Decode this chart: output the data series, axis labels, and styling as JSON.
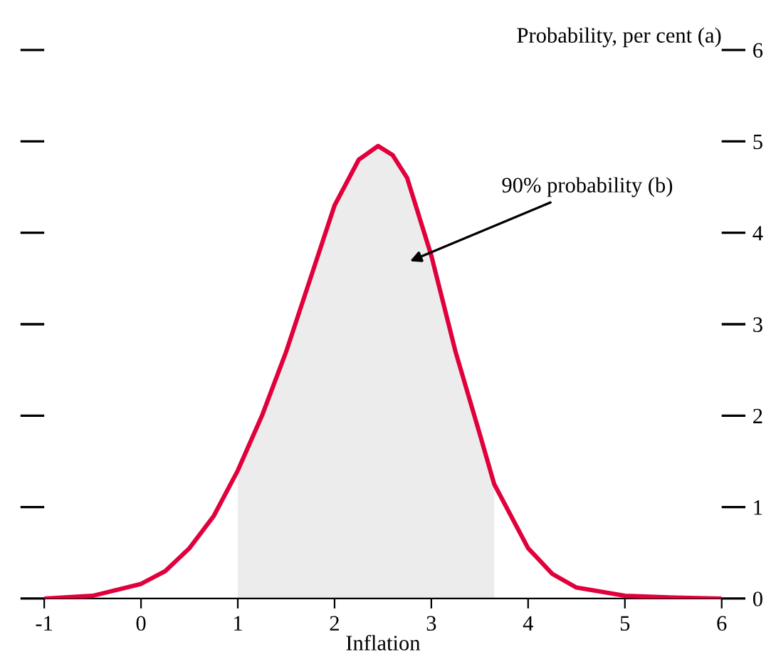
{
  "chart_data": {
    "type": "line",
    "xlabel": "Inflation",
    "ylabel": "Probability, per cent (a)",
    "x": [
      -1,
      -0.5,
      0,
      0.25,
      0.5,
      0.75,
      1.0,
      1.25,
      1.5,
      1.75,
      2.0,
      2.25,
      2.45,
      2.6,
      2.75,
      3.0,
      3.25,
      3.5,
      3.65,
      4.0,
      4.25,
      4.5,
      5.0,
      5.5,
      6.0
    ],
    "series": [
      {
        "type": "area",
        "color": "#ececec",
        "x": [
          1.0,
          1.25,
          1.5,
          1.75,
          2.0,
          2.25,
          2.45,
          2.6,
          2.75,
          3.0,
          3.25,
          3.5,
          3.65
        ],
        "values": [
          1.4,
          2.0,
          2.7,
          3.5,
          4.3,
          4.8,
          4.95,
          4.85,
          4.6,
          3.75,
          2.7,
          1.8,
          1.25
        ]
      },
      {
        "color": "#e0003c",
        "values": [
          0.0,
          0.03,
          0.16,
          0.3,
          0.55,
          0.9,
          1.4,
          2.0,
          2.7,
          3.5,
          4.3,
          4.8,
          4.95,
          4.85,
          4.6,
          3.75,
          2.7,
          1.8,
          1.25,
          0.55,
          0.27,
          0.12,
          0.03,
          0.01,
          0.0
        ]
      }
    ],
    "annotations": [
      "90% probability (b)"
    ],
    "xlim": [
      -1,
      6
    ],
    "xticks": [
      -1,
      0,
      1,
      2,
      3,
      4,
      5,
      6
    ],
    "ylim": [
      0,
      6
    ],
    "yticks": [
      0,
      1,
      2,
      3,
      4,
      5,
      6
    ],
    "grid": false,
    "legend": false,
    "marker": "none",
    "line_style": "solid"
  }
}
